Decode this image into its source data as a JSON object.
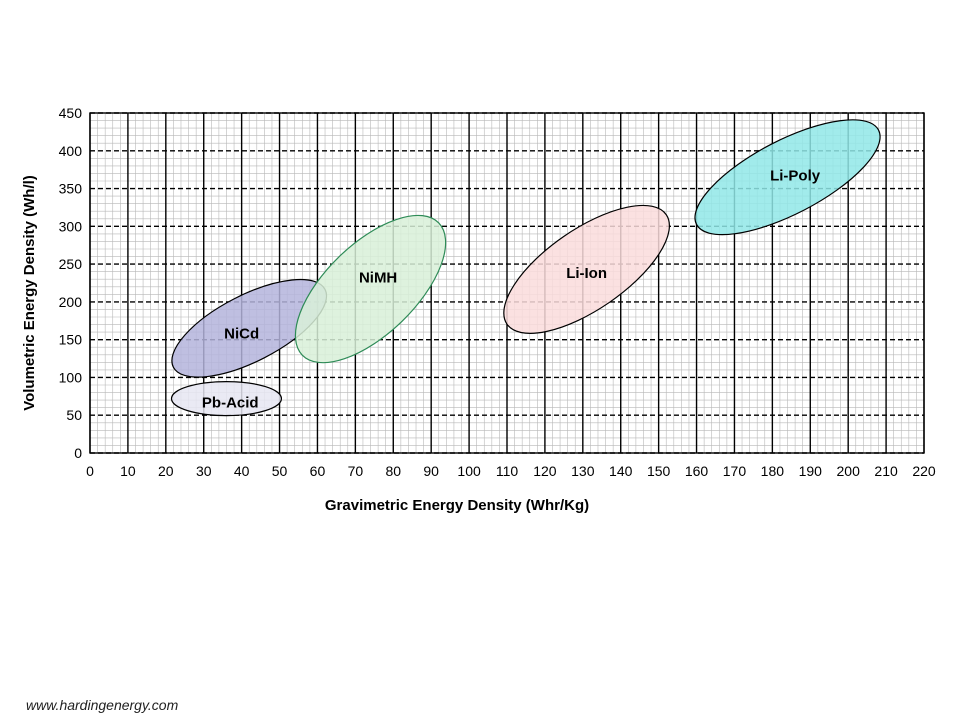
{
  "chart_data": {
    "type": "scatter",
    "title": "",
    "xlabel": "Gravimetric Energy Density (Whr/Kg)",
    "ylabel": "Volumetric Energy Density (Wh/l)",
    "xlim": [
      0,
      220
    ],
    "ylim": [
      0,
      450
    ],
    "xticks": [
      0,
      10,
      20,
      30,
      40,
      50,
      60,
      70,
      80,
      90,
      100,
      110,
      120,
      130,
      140,
      150,
      160,
      170,
      180,
      190,
      200,
      210,
      220
    ],
    "yticks": [
      0,
      50,
      100,
      150,
      200,
      250,
      300,
      350,
      400,
      450
    ],
    "grid": true,
    "regions": [
      {
        "name": "Pb-Acid",
        "color": "#e6e6f2",
        "edge": "#000000",
        "x_range": [
          21,
          50
        ],
        "y_range": [
          50,
          95
        ],
        "center": [
          36,
          72
        ],
        "label_pos": [
          37,
          67
        ]
      },
      {
        "name": "NiCd",
        "color": "#b4b4dc",
        "edge": "#000000",
        "x_range": [
          22,
          62
        ],
        "y_range": [
          115,
          218
        ],
        "center": [
          42,
          165
        ],
        "label_pos": [
          40,
          158
        ]
      },
      {
        "name": "NiMH",
        "color": "#d8f0d8",
        "edge": "#2e8b57",
        "x_range": [
          56,
          92
        ],
        "y_range": [
          130,
          305
        ],
        "center": [
          74,
          217
        ],
        "label_pos": [
          76,
          232
        ]
      },
      {
        "name": "Li-Ion",
        "color": "#fadcdc",
        "edge": "#000000",
        "x_range": [
          110,
          152
        ],
        "y_range": [
          170,
          315
        ],
        "center": [
          131,
          243
        ],
        "label_pos": [
          131,
          238
        ]
      },
      {
        "name": "Li-Poly",
        "color": "#90e8e8",
        "edge": "#000000",
        "x_range": [
          160,
          208
        ],
        "y_range": [
          305,
          430
        ],
        "center": [
          184,
          365
        ],
        "label_pos": [
          186,
          367
        ]
      }
    ]
  },
  "footer": {
    "url": "www.hardingenergy.com"
  }
}
